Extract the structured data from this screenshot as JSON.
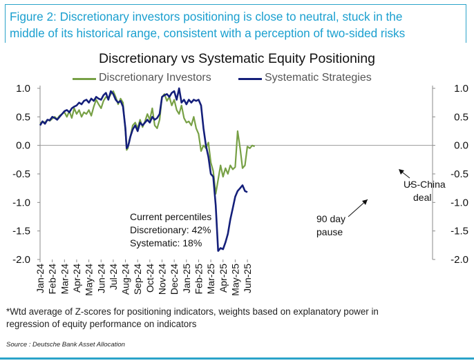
{
  "figure": {
    "caption_line1": "Figure 2: Discretionary investors positioning is close to neutral, stuck in the",
    "caption_line2": "middle of its historical range, consistent with a perception of two-sided risks",
    "footnote_line1": "*Wtd average of Z-scores for positioning indicators, weights based on explanatory power in",
    "footnote_line2": "regression of equity performance on indicators",
    "source": "Source : Deutsche Bank Asset Allocation"
  },
  "chart_data": {
    "type": "line",
    "title": "Discretionary  vs Systematic Equity Positioning",
    "xlabel": "",
    "ylabel": "",
    "ylim": [
      -2.0,
      1.0
    ],
    "y_ticks": [
      "1.0",
      "0.5",
      "0.0",
      "-0.5",
      "-1.0",
      "-1.5",
      "-2.0"
    ],
    "y_tick_values": [
      1.0,
      0.5,
      0.0,
      -0.5,
      -1.0,
      -1.5,
      -2.0
    ],
    "x_tick_labels": [
      "Jan-24",
      "Feb-24",
      "Mar-24",
      "Apr-24",
      "May-24",
      "Jun-24",
      "Jul-24",
      "Aug-24",
      "Sep-24",
      "Oct-24",
      "Nov-24",
      "Dec-24",
      "Jan-25",
      "Feb-25",
      "Mar-25",
      "Apr-25",
      "May-25",
      "Jun-25"
    ],
    "x_range_months": [
      0,
      17.6
    ],
    "grid": false,
    "zero_line": true,
    "legend_position": "top",
    "series": [
      {
        "name": "Discretionary Investors",
        "color": "#77a045",
        "x": [
          0,
          0.2,
          0.4,
          0.6,
          0.8,
          1.0,
          1.2,
          1.4,
          1.6,
          1.8,
          2.0,
          2.2,
          2.4,
          2.6,
          2.8,
          3.0,
          3.2,
          3.4,
          3.6,
          3.8,
          4.0,
          4.2,
          4.4,
          4.6,
          4.8,
          5.0,
          5.2,
          5.4,
          5.6,
          5.8,
          6.0,
          6.2,
          6.4,
          6.6,
          6.8,
          7.0,
          7.1,
          7.2,
          7.3,
          7.4,
          7.6,
          7.8,
          8.0,
          8.2,
          8.4,
          8.6,
          8.8,
          9.0,
          9.2,
          9.4,
          9.6,
          9.8,
          10.0,
          10.2,
          10.4,
          10.6,
          10.8,
          11.0,
          11.2,
          11.4,
          11.6,
          11.8,
          12.0,
          12.2,
          12.4,
          12.6,
          12.8,
          13.0,
          13.2,
          13.4,
          13.6,
          13.8,
          14.0,
          14.2,
          14.4,
          14.6,
          14.8,
          15.0,
          15.2,
          15.4,
          15.6,
          15.8,
          16.0,
          16.2,
          16.4,
          16.6,
          16.8,
          17.0,
          17.2,
          17.4,
          17.6
        ],
        "values": [
          0.38,
          0.42,
          0.4,
          0.45,
          0.43,
          0.47,
          0.5,
          0.46,
          0.52,
          0.55,
          0.58,
          0.5,
          0.6,
          0.48,
          0.65,
          0.55,
          0.62,
          0.5,
          0.58,
          0.55,
          0.62,
          0.52,
          0.68,
          0.8,
          0.72,
          0.65,
          0.78,
          0.85,
          0.82,
          0.9,
          0.95,
          0.85,
          0.72,
          0.82,
          0.75,
          0.25,
          -0.08,
          -0.05,
          0.08,
          0.15,
          0.35,
          0.4,
          0.3,
          0.45,
          0.32,
          0.42,
          0.55,
          0.45,
          0.65,
          0.35,
          0.3,
          0.45,
          0.85,
          0.9,
          0.78,
          0.85,
          0.7,
          0.8,
          0.62,
          0.55,
          0.7,
          0.48,
          0.4,
          0.42,
          0.35,
          0.5,
          0.3,
          0.2,
          -0.1,
          0.0,
          -0.05,
          0.05,
          -0.3,
          -0.45,
          -0.85,
          -0.6,
          -0.35,
          -0.55,
          -0.4,
          -0.5,
          -0.35,
          -0.42,
          -0.38,
          0.25,
          -0.05,
          -0.4,
          -0.35,
          -0.02,
          -0.05,
          0.0,
          -0.02
        ]
      },
      {
        "name": "Systematic Strategies",
        "color": "#141f7a",
        "x": [
          0,
          0.2,
          0.4,
          0.6,
          0.8,
          1.0,
          1.2,
          1.4,
          1.6,
          1.8,
          2.0,
          2.2,
          2.4,
          2.6,
          2.8,
          3.0,
          3.2,
          3.4,
          3.6,
          3.8,
          4.0,
          4.2,
          4.4,
          4.6,
          4.8,
          5.0,
          5.2,
          5.4,
          5.6,
          5.8,
          6.0,
          6.2,
          6.4,
          6.6,
          6.8,
          7.0,
          7.1,
          7.2,
          7.3,
          7.4,
          7.6,
          7.8,
          8.0,
          8.2,
          8.4,
          8.6,
          8.8,
          9.0,
          9.2,
          9.4,
          9.6,
          9.8,
          10.0,
          10.2,
          10.4,
          10.6,
          10.8,
          11.0,
          11.2,
          11.4,
          11.6,
          11.8,
          12.0,
          12.2,
          12.4,
          12.6,
          12.8,
          13.0,
          13.2,
          13.4,
          13.6,
          13.8,
          14.0,
          14.2,
          14.4,
          14.6,
          14.8,
          15.0,
          15.2,
          15.4,
          15.6,
          15.8,
          16.0,
          16.2,
          16.4,
          16.6,
          16.8,
          17.0
        ],
        "values": [
          0.35,
          0.42,
          0.38,
          0.45,
          0.44,
          0.5,
          0.48,
          0.45,
          0.5,
          0.55,
          0.6,
          0.62,
          0.58,
          0.65,
          0.68,
          0.7,
          0.75,
          0.72,
          0.78,
          0.8,
          0.75,
          0.82,
          0.78,
          0.85,
          0.82,
          0.8,
          0.88,
          0.92,
          0.8,
          0.95,
          0.9,
          0.8,
          0.75,
          0.78,
          0.68,
          0.3,
          -0.05,
          -0.02,
          0.05,
          0.15,
          0.28,
          0.35,
          0.25,
          0.4,
          0.35,
          0.4,
          0.45,
          0.4,
          0.5,
          0.45,
          0.48,
          0.55,
          0.85,
          0.88,
          0.9,
          0.85,
          0.92,
          0.95,
          0.8,
          1.0,
          0.75,
          0.8,
          0.72,
          0.8,
          0.75,
          0.8,
          0.78,
          0.8,
          0.7,
          0.3,
          0.0,
          -0.2,
          -0.5,
          -0.55,
          -1.05,
          -1.85,
          -1.8,
          -1.82,
          -1.7,
          -1.55,
          -1.3,
          -1.1,
          -0.9,
          -0.8,
          -0.75,
          -0.7,
          -0.8,
          -0.82
        ]
      }
    ],
    "annotations": {
      "percentiles_title": "Current percentiles",
      "percentiles_disc": "Discretionary: 42%",
      "percentiles_sys": "Systematic: 18%",
      "pause_line1": "90 day",
      "pause_line2": "pause",
      "deal_line1": "US-China",
      "deal_line2": "deal"
    }
  }
}
